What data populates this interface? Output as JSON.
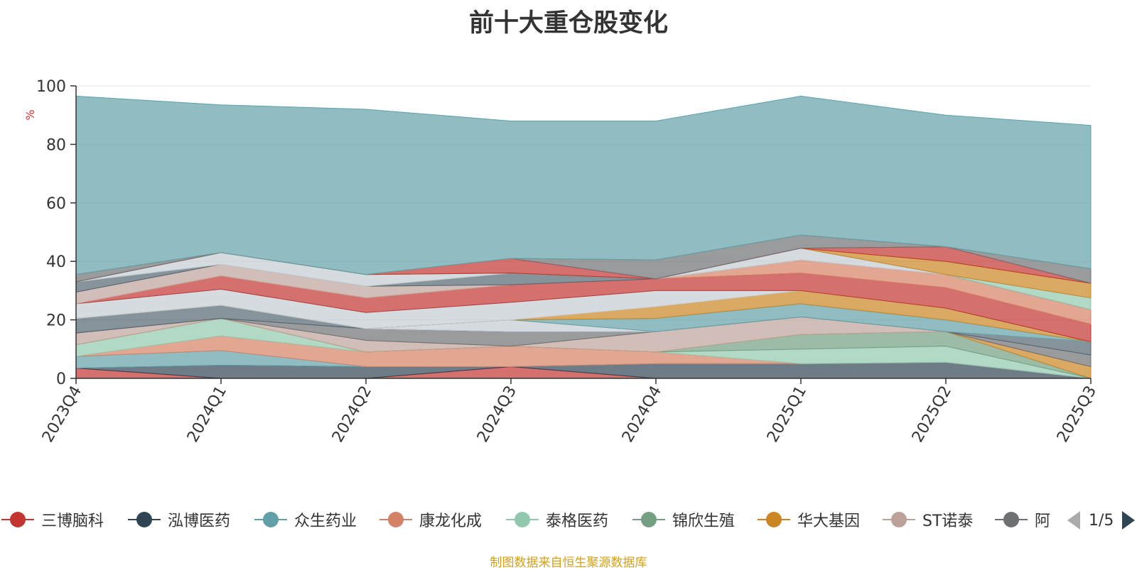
{
  "chart_data": {
    "type": "area",
    "stacked": true,
    "title": "前十大重仓股变化",
    "ylabel": "%",
    "ylim": [
      0,
      100
    ],
    "yticks": [
      0,
      20,
      40,
      60,
      80,
      100
    ],
    "categories": [
      "2023Q4",
      "2024Q1",
      "2024Q2",
      "2024Q3",
      "2024Q4",
      "2025Q1",
      "2025Q2",
      "2025Q3"
    ],
    "grid": true,
    "legend_position": "bottom",
    "series": [
      {
        "name": "三博脑科",
        "color": "#c23531",
        "values": [
          3.5,
          0,
          0,
          4,
          0,
          0,
          0,
          0
        ]
      },
      {
        "name": "泓博医药",
        "color": "#2f4554",
        "values": [
          0,
          4.5,
          4,
          0,
          5,
          5,
          5.5,
          0
        ]
      },
      {
        "name": "众生药业",
        "color": "#61a0a8",
        "values": [
          4,
          5,
          0,
          0,
          0,
          0,
          0,
          0
        ]
      },
      {
        "name": "康龙化成",
        "color": "#d48265",
        "values": [
          0,
          5,
          5,
          7,
          4,
          0,
          0,
          0
        ]
      },
      {
        "name": "泰格医药",
        "color": "#91c7ae",
        "values": [
          4,
          6,
          0,
          0,
          0,
          5,
          5.5,
          0
        ]
      },
      {
        "name": "锦欣生殖",
        "color": "#749f83",
        "values": [
          0,
          0,
          0,
          0,
          0,
          5,
          5,
          0
        ]
      },
      {
        "name": "华大基因",
        "color": "#ca8622",
        "values": [
          0,
          0,
          0,
          0,
          0,
          0,
          0,
          4
        ]
      },
      {
        "name": "ST诺泰",
        "color": "#bda29a",
        "values": [
          4,
          0,
          4,
          0,
          7,
          6,
          0,
          0
        ]
      },
      {
        "name": "阿",
        "color": "#6e7074",
        "values": [
          0,
          0,
          4,
          5,
          0,
          0,
          0,
          4
        ]
      },
      {
        "name": "",
        "color": "#546570",
        "values": [
          5,
          4.5,
          0,
          0,
          0,
          0,
          0,
          4.5
        ]
      },
      {
        "name": "",
        "color": "#c4ccd3",
        "values": [
          0,
          0,
          0,
          4,
          0,
          0,
          0,
          0
        ]
      },
      {
        "name": "",
        "color": "#61a0a8",
        "values": [
          0,
          0,
          0,
          0,
          4.5,
          4.5,
          4,
          0
        ]
      },
      {
        "name": "",
        "color": "#ca8622",
        "values": [
          0,
          0,
          0,
          0,
          4,
          4.5,
          4,
          0
        ]
      },
      {
        "name": "",
        "color": "#c4ccd3",
        "values": [
          5,
          5.5,
          5.5,
          6,
          5.5,
          0,
          0,
          0
        ]
      },
      {
        "name": "",
        "color": "#c23531",
        "values": [
          0,
          4.5,
          5,
          6,
          4,
          6,
          7,
          6
        ]
      },
      {
        "name": "",
        "color": "#d48265",
        "values": [
          0,
          0,
          0,
          0,
          0,
          4.5,
          4.5,
          5
        ]
      },
      {
        "name": "",
        "color": "#bda29a",
        "values": [
          4,
          4,
          4,
          0,
          0,
          0,
          0,
          0
        ]
      },
      {
        "name": "",
        "color": "#546570",
        "values": [
          3.5,
          0,
          0,
          4,
          0,
          0,
          0,
          0
        ]
      },
      {
        "name": "",
        "color": "#91c7ae",
        "values": [
          0,
          0,
          0,
          0,
          0,
          0,
          0,
          4
        ]
      },
      {
        "name": "",
        "color": "#c4ccd3",
        "values": [
          0,
          4,
          4,
          0,
          0,
          4,
          0,
          0
        ]
      },
      {
        "name": "",
        "color": "#ca8622",
        "values": [
          0,
          0,
          0,
          0,
          0,
          0,
          4.5,
          5
        ]
      },
      {
        "name": "",
        "color": "#c23531",
        "values": [
          0,
          0,
          0,
          5,
          0,
          0,
          5,
          0
        ]
      },
      {
        "name": "",
        "color": "#6e7074",
        "values": [
          2.5,
          0,
          0,
          0,
          6.5,
          4.5,
          0,
          5
        ]
      },
      {
        "name": "",
        "color": "#749f83",
        "values": [
          0,
          0,
          0,
          0,
          0,
          0,
          0,
          0
        ]
      },
      {
        "name": "",
        "color": "#61a0a8",
        "values": [
          61,
          50.5,
          56.5,
          47,
          47.5,
          47.5,
          45,
          49
        ]
      }
    ]
  },
  "legend_items": [
    {
      "label": "三博脑科",
      "color": "#c23531"
    },
    {
      "label": "泓博医药",
      "color": "#2f4554"
    },
    {
      "label": "众生药业",
      "color": "#61a0a8"
    },
    {
      "label": "康龙化成",
      "color": "#d48265"
    },
    {
      "label": "泰格医药",
      "color": "#91c7ae"
    },
    {
      "label": "锦欣生殖",
      "color": "#749f83"
    },
    {
      "label": "华大基因",
      "color": "#ca8622"
    },
    {
      "label": "ST诺泰",
      "color": "#bda29a"
    },
    {
      "label": "阿",
      "color": "#6e7074"
    }
  ],
  "pager": {
    "text": "1/5"
  },
  "source_note": "制图数据来自恒生聚源数据库"
}
